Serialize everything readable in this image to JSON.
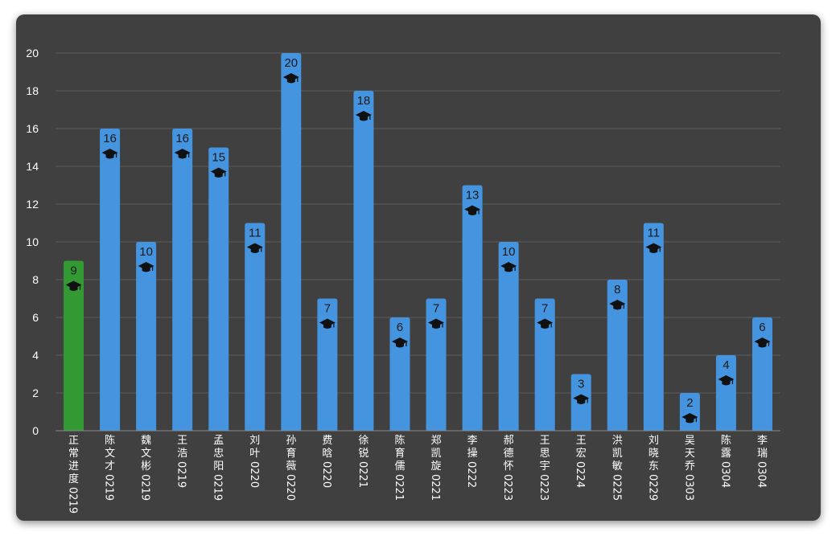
{
  "chart_data": {
    "type": "bar",
    "title": "",
    "xlabel": "",
    "ylabel": "",
    "ylim": [
      0,
      20
    ],
    "yticks": [
      0,
      2,
      4,
      6,
      8,
      10,
      12,
      14,
      16,
      18,
      20
    ],
    "grid": true,
    "legend": "none",
    "categories": [
      "正常进度0219",
      "陈文才0219",
      "魏文彬0219",
      "王浩0219",
      "孟忠阳0219",
      "刘叶0220",
      "孙育薇0220",
      "费晗0220",
      "徐锐0221",
      "陈育儒0221",
      "郑凯旋0221",
      "李操0222",
      "郝德怀0223",
      "王思宇0223",
      "王宏0224",
      "洪凯敏0225",
      "刘晓东0229",
      "吴天乔0303",
      "陈露0304",
      "李瑞0304"
    ],
    "values": [
      9,
      16,
      10,
      16,
      15,
      11,
      20,
      7,
      18,
      6,
      7,
      13,
      10,
      7,
      3,
      8,
      11,
      2,
      4,
      6
    ],
    "colors": {
      "normal": "#4494e0",
      "highlight": "#339933",
      "background": "#404040",
      "grid": "#5c5c5c"
    },
    "highlight_index": 0,
    "marker_icon": "graduation-cap-icon"
  }
}
